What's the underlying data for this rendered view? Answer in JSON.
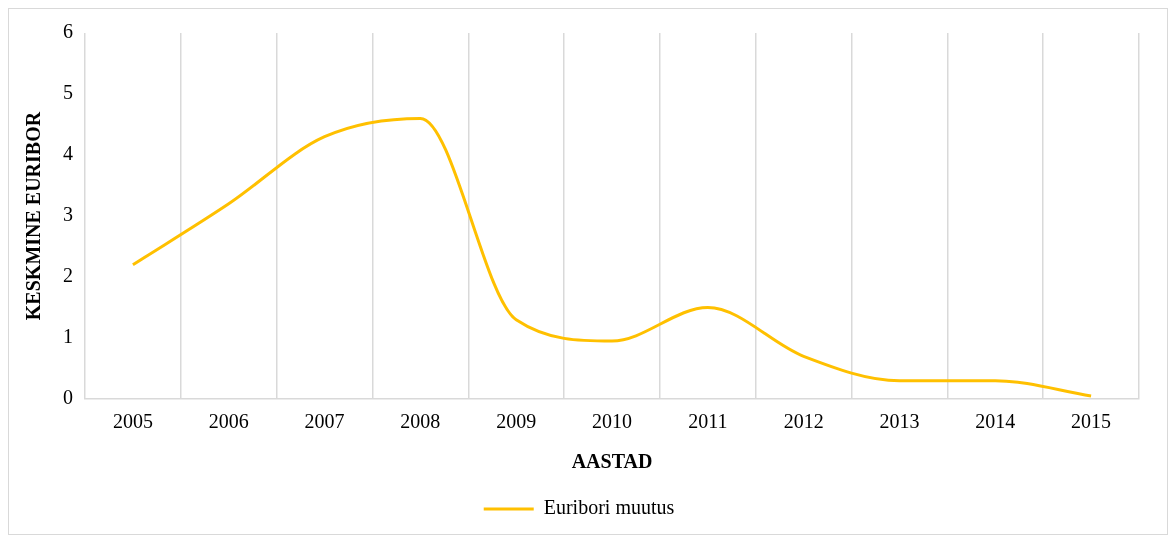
{
  "chart_data": {
    "type": "line",
    "xlabel": "AASTAD",
    "ylabel": "KESKMINE EURIBOR",
    "categories": [
      "2005",
      "2006",
      "2007",
      "2008",
      "2009",
      "2010",
      "2011",
      "2012",
      "2013",
      "2014",
      "2015"
    ],
    "series": [
      {
        "name": "Euribori muutus",
        "color": "#ffc000",
        "values": [
          2.2,
          3.2,
          4.3,
          4.6,
          1.3,
          0.95,
          1.5,
          0.7,
          0.3,
          0.3,
          0.05
        ]
      }
    ],
    "ylim": [
      0,
      6
    ],
    "yticks": [
      0,
      1,
      2,
      3,
      4,
      5,
      6
    ],
    "grid": "x",
    "legend": "bottom",
    "marker": "none",
    "line_style": "solid"
  }
}
